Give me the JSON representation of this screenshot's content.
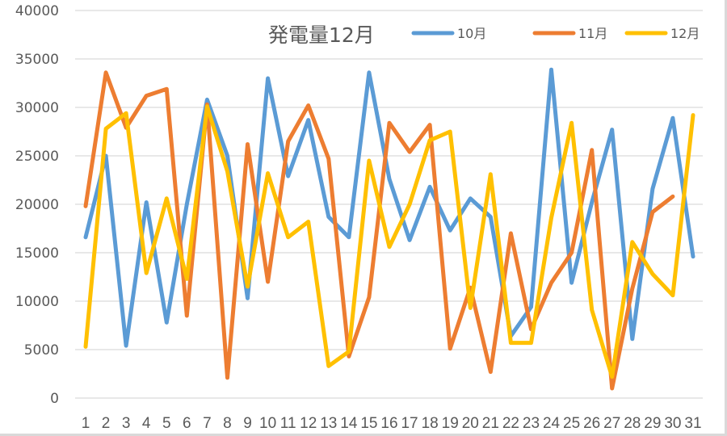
{
  "chart_data": {
    "type": "line",
    "title": "発電量12月",
    "xlabel": "",
    "ylabel": "",
    "ylim": [
      0,
      40000
    ],
    "ytick_step": 5000,
    "yticks": [
      "0",
      "5000",
      "10000",
      "15000",
      "20000",
      "25000",
      "30000",
      "35000",
      "40000"
    ],
    "grid": true,
    "legend_position": "top-right",
    "categories": [
      "1",
      "2",
      "3",
      "4",
      "5",
      "6",
      "7",
      "8",
      "9",
      "10",
      "11",
      "12",
      "13",
      "14",
      "15",
      "16",
      "17",
      "18",
      "19",
      "20",
      "21",
      "22",
      "23",
      "24",
      "25",
      "26",
      "27",
      "28",
      "29",
      "30",
      "31"
    ],
    "series": [
      {
        "name": "10月",
        "color": "#5B9BD5",
        "values": [
          16600,
          25000,
          5400,
          20200,
          7800,
          20000,
          30800,
          25000,
          10300,
          33000,
          22900,
          28700,
          18700,
          16600,
          33600,
          22600,
          16300,
          21800,
          17300,
          20600,
          18700,
          6400,
          9400,
          33900,
          11900,
          20200,
          27700,
          6100,
          21600,
          28900,
          14600
        ]
      },
      {
        "name": "11月",
        "color": "#ED7D31",
        "values": [
          19800,
          33600,
          27900,
          31200,
          31900,
          8500,
          30300,
          2100,
          26200,
          12000,
          26500,
          30200,
          24700,
          4300,
          10400,
          28400,
          25400,
          28200,
          5100,
          11400,
          2700,
          17000,
          7100,
          11900,
          15000,
          25600,
          1000,
          11300,
          19200,
          20800,
          null
        ]
      },
      {
        "name": "12月",
        "color": "#FFC000",
        "values": [
          5300,
          27800,
          29400,
          12900,
          20600,
          12300,
          30100,
          23400,
          11500,
          23200,
          16600,
          18200,
          3300,
          4800,
          24500,
          15600,
          20000,
          26600,
          27500,
          9300,
          23100,
          5700,
          5700,
          18600,
          28400,
          9100,
          2200,
          16100,
          12800,
          10600,
          29200
        ]
      }
    ]
  },
  "colors": {
    "gridline": "#D9D9D9",
    "text": "#595959",
    "background": "#FFFFFF"
  }
}
